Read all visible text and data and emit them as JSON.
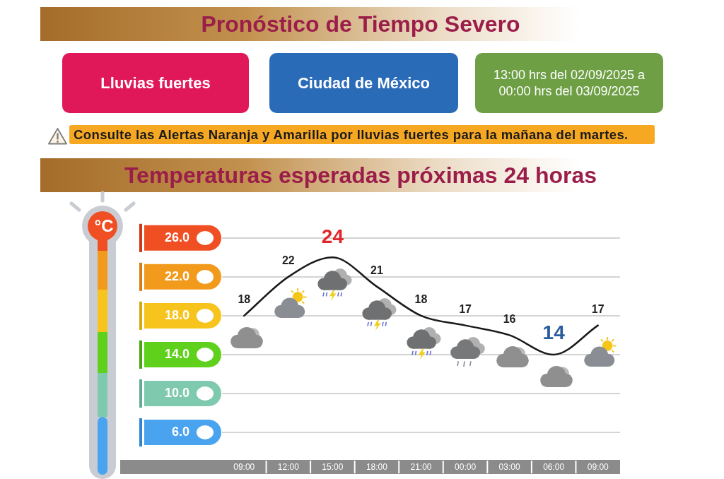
{
  "chart_data": {
    "type": "line",
    "title": "Pronóstico de Tiempo Severo",
    "subtitle": "Temperaturas esperadas próximas 24 horas",
    "ylabel": "°C",
    "annotations": [
      "Lluvias fuertes",
      "Ciudad de México",
      "13:00 hrs del 02/09/2025 a 00:00 hrs del 03/09/2025",
      "Consulte las Alertas Naranja y Amarilla por lluvias fuertes para la mañana del martes."
    ],
    "categories": [
      "09:00",
      "12:00",
      "15:00",
      "18:00",
      "21:00",
      "00:00",
      "03:00",
      "06:00",
      "09:00"
    ],
    "values": [
      18,
      22,
      24,
      21,
      18,
      17,
      16,
      14,
      17
    ],
    "color": "#1a1a1a",
    "ylim": [
      6,
      26
    ],
    "yticks": [
      {
        "value": 6,
        "label": "6.0"
      },
      {
        "value": 10,
        "label": "10.0"
      },
      {
        "value": 14,
        "label": "14.0"
      },
      {
        "value": 18,
        "label": "18.0"
      },
      {
        "value": 22,
        "label": "22.0"
      },
      {
        "value": 26,
        "label": "26.0"
      }
    ],
    "grid": "y",
    "legend": false,
    "marker": "none",
    "line_style": "solid",
    "data_labels": true
  }
}
